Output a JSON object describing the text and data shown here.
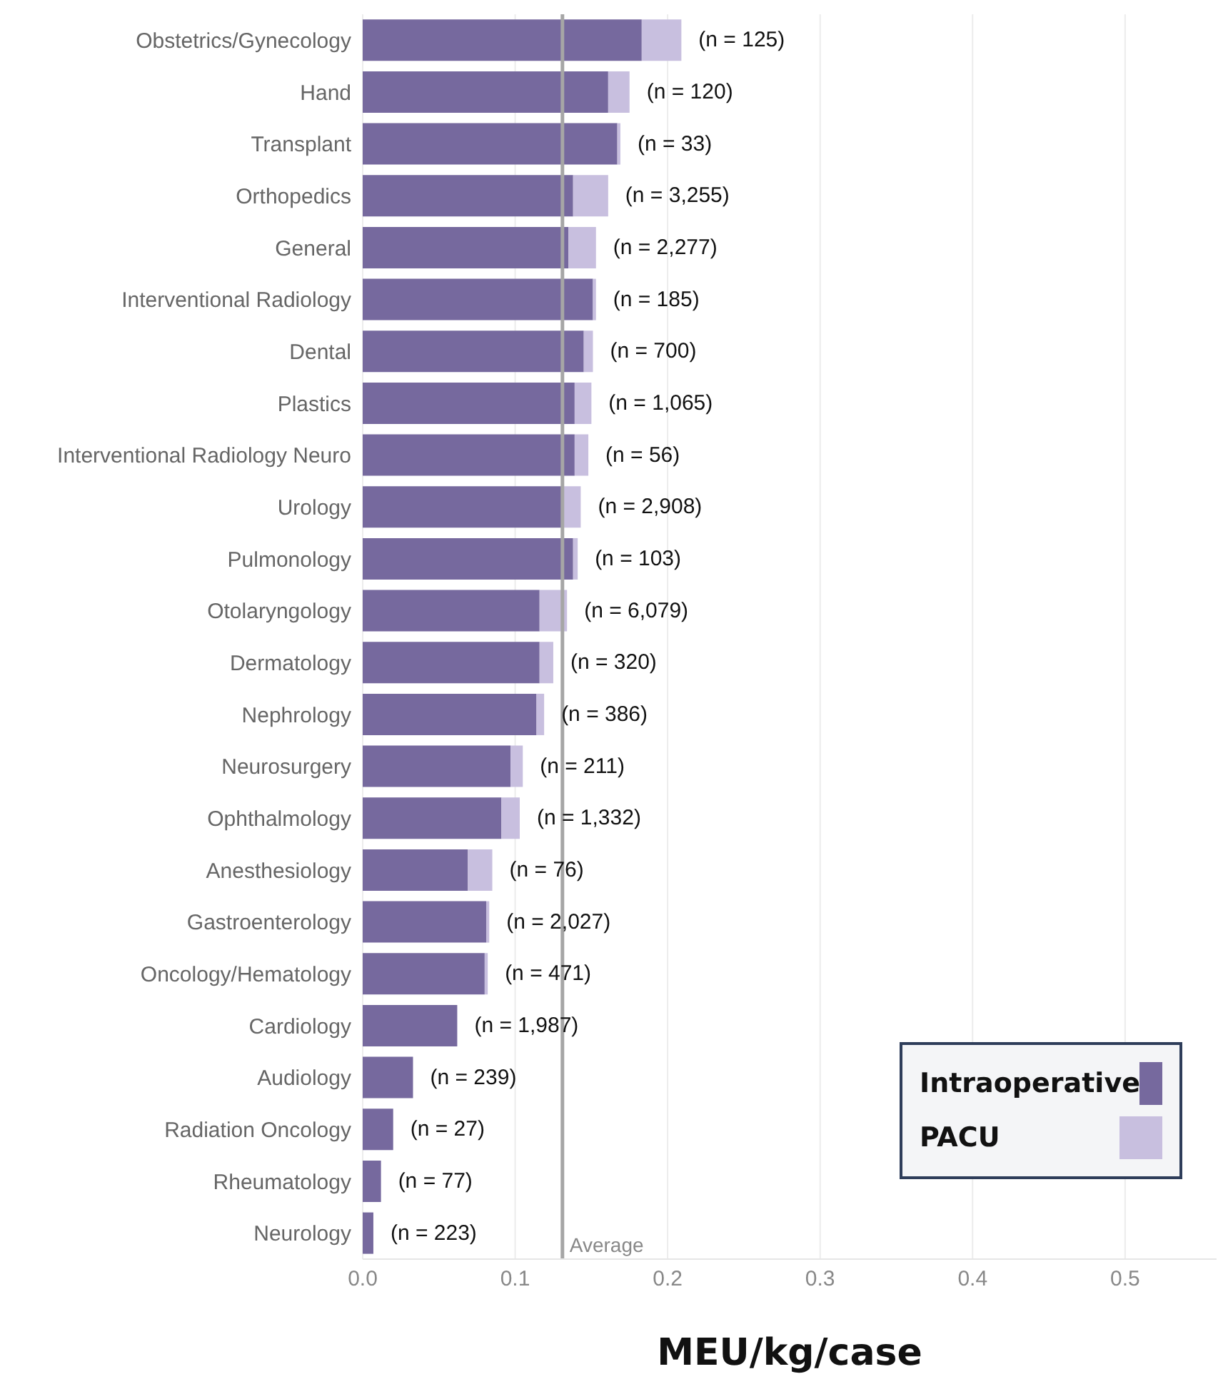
{
  "chart_data": {
    "type": "bar",
    "orientation": "horizontal",
    "stacked": true,
    "xlabel": "MEU/kg/case",
    "categories": [
      "Obstetrics/Gynecology",
      "Hand",
      "Transplant",
      "Orthopedics",
      "General",
      "Interventional Radiology",
      "Dental",
      "Plastics",
      "Interventional Radiology Neuro",
      "Urology",
      "Pulmonology",
      "Otolaryngology",
      "Dermatology",
      "Nephrology",
      "Neurosurgery",
      "Ophthalmology",
      "Anesthesiology",
      "Gastroenterology",
      "Oncology/Hematology",
      "Cardiology",
      "Audiology",
      "Radiation Oncology",
      "Rheumatology",
      "Neurology"
    ],
    "series": [
      {
        "name": "Intraoperative",
        "color": "#76699e",
        "values": [
          0.183,
          0.161,
          0.167,
          0.138,
          0.135,
          0.151,
          0.145,
          0.139,
          0.139,
          0.132,
          0.138,
          0.116,
          0.116,
          0.114,
          0.097,
          0.091,
          0.069,
          0.081,
          0.08,
          0.062,
          0.033,
          0.02,
          0.012,
          0.007
        ]
      },
      {
        "name": "PACU",
        "color": "#c8bfdf",
        "values": [
          0.026,
          0.014,
          0.002,
          0.023,
          0.018,
          0.002,
          0.006,
          0.011,
          0.009,
          0.011,
          0.003,
          0.018,
          0.009,
          0.005,
          0.008,
          0.012,
          0.016,
          0.002,
          0.002,
          0,
          0,
          0,
          0,
          0
        ]
      }
    ],
    "xlim": [
      0,
      0.56
    ],
    "xticks": [
      {
        "value": 0,
        "label": "0.0"
      },
      0.1,
      0.2,
      0.3,
      0.4,
      0.5
    ],
    "grid": "x",
    "legend": "bottom right",
    "ref_lines": [
      {
        "axis": "x",
        "value": 0.131,
        "label": "Average",
        "color": "#a6a6a6"
      }
    ],
    "annotations": [
      "(n = 125)",
      "(n = 120)",
      "(n = 33)",
      "(n = 3,255)",
      "(n = 2,277)",
      "(n = 185)",
      "(n = 700)",
      "(n = 1,065)",
      "(n = 56)",
      "(n = 2,908)",
      "(n = 103)",
      "(n = 6,079)",
      "(n = 320)",
      "(n = 386)",
      "(n = 211)",
      "(n = 1,332)",
      "(n = 76)",
      "(n = 2,027)",
      "(n = 471)",
      "(n = 1,987)",
      "(n = 239)",
      "(n = 27)",
      "(n = 77)",
      "(n = 223)"
    ]
  }
}
